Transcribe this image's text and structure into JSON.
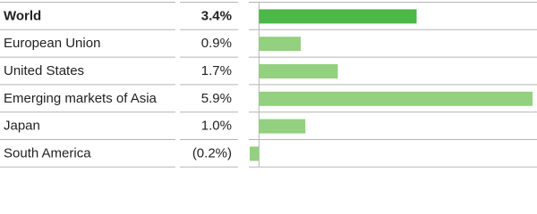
{
  "chart_data": {
    "type": "bar",
    "categories": [
      "World",
      "European Union",
      "United States",
      "Emerging markets of Asia",
      "Japan",
      "South America"
    ],
    "values": [
      3.4,
      0.9,
      1.7,
      5.9,
      1.0,
      -0.2
    ],
    "value_labels": [
      "3.4%",
      "0.9%",
      "1.7%",
      "5.9%",
      "1.0%",
      "(0.2%)"
    ],
    "colors": [
      "#4cb848",
      "#93d07f",
      "#93d07f",
      "#93d07f",
      "#93d07f",
      "#93d07f"
    ],
    "xlim": [
      -0.2,
      5.9
    ]
  }
}
